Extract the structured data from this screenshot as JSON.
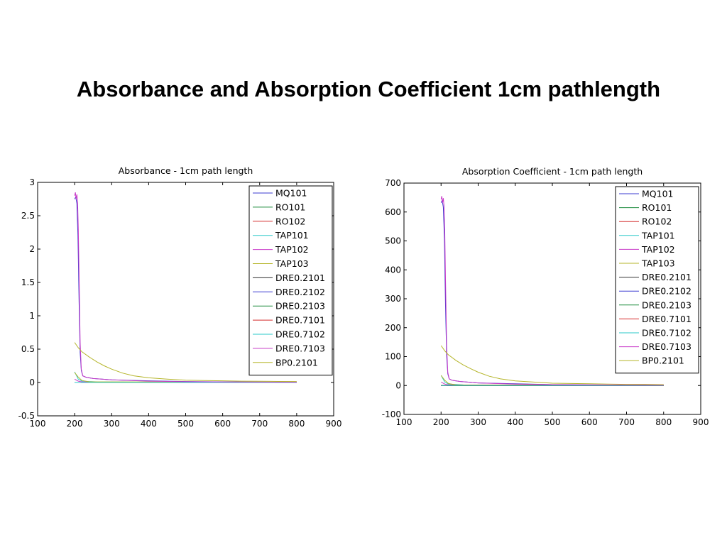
{
  "slide": {
    "title": "Absorbance and Absorption Coefficient 1cm pathlength"
  },
  "legend_colors": {
    "MQ101": "#3b3bd0",
    "RO101": "#1a8a3a",
    "RO102": "#d42a2a",
    "TAP101": "#2ac9c9",
    "TAP102": "#c83ac8",
    "TAP103": "#b5b52a",
    "DRE0.2101": "#333333",
    "DRE0.2102": "#3b3bd0",
    "DRE0.2103": "#1a8a3a",
    "DRE0.7101": "#d42a2a",
    "DRE0.7102": "#2ac9c9",
    "DRE0.7103": "#c83ac8",
    "BP0.2101": "#b5b52a"
  },
  "chart_data": [
    {
      "type": "line",
      "title": "Absorbance - 1cm path length",
      "xlabel": "",
      "ylabel": "",
      "xlim": [
        100,
        900
      ],
      "ylim": [
        -0.5,
        3
      ],
      "xticks": [
        "100",
        "200",
        "300",
        "400",
        "500",
        "600",
        "700",
        "800",
        "900"
      ],
      "yticks": [
        "-0.5",
        "0",
        "0.5",
        "1",
        "1.5",
        "2",
        "2.5",
        "3"
      ],
      "grid": false,
      "legend_position": "top-right",
      "series": [
        {
          "name": "MQ101",
          "x": [
            200,
            800
          ],
          "y": [
            0,
            0
          ]
        },
        {
          "name": "RO101",
          "x": [
            200,
            800
          ],
          "y": [
            0,
            0
          ]
        },
        {
          "name": "RO102",
          "x": [
            200,
            800
          ],
          "y": [
            0,
            0
          ]
        },
        {
          "name": "TAP101",
          "x": [
            200,
            210,
            220,
            260,
            400,
            800
          ],
          "y": [
            0.16,
            0.05,
            0.02,
            0.01,
            0.005,
            0.003
          ]
        },
        {
          "name": "TAP102",
          "x": [
            200,
            210,
            220,
            260,
            400,
            800
          ],
          "y": [
            0.05,
            0.02,
            0.01,
            0.005,
            0.003,
            0.002
          ]
        },
        {
          "name": "TAP103",
          "x": [
            200,
            210,
            220,
            240,
            800
          ],
          "y": [
            0.15,
            0.08,
            0.03,
            0.01,
            0.005
          ]
        },
        {
          "name": "DRE0.2101",
          "x": [
            200,
            800
          ],
          "y": [
            0,
            0
          ]
        },
        {
          "name": "DRE0.2102",
          "x": [
            200,
            203,
            206,
            209,
            212,
            215,
            218,
            222,
            230,
            250,
            300,
            400,
            500,
            600,
            800
          ],
          "y": [
            2.75,
            2.78,
            2.68,
            2.2,
            1.2,
            0.45,
            0.18,
            0.1,
            0.08,
            0.06,
            0.04,
            0.025,
            0.015,
            0.01,
            0.005
          ]
        },
        {
          "name": "DRE0.2103",
          "x": [
            200,
            800
          ],
          "y": [
            0,
            0
          ]
        },
        {
          "name": "DRE0.7101",
          "x": [
            200,
            800
          ],
          "y": [
            0,
            0
          ]
        },
        {
          "name": "DRE0.7102",
          "x": [
            200,
            800
          ],
          "y": [
            0,
            0
          ]
        },
        {
          "name": "DRE0.7103",
          "x": [
            200,
            202,
            204,
            206,
            208,
            210,
            212,
            215,
            218,
            222,
            230,
            250,
            300,
            400,
            500,
            600,
            800
          ],
          "y": [
            2.8,
            2.85,
            2.75,
            2.82,
            2.7,
            2.3,
            1.6,
            0.6,
            0.2,
            0.1,
            0.08,
            0.06,
            0.04,
            0.02,
            0.012,
            0.008,
            0.004
          ]
        },
        {
          "name": "BP0.2101",
          "x": [
            200,
            210,
            220,
            240,
            260,
            280,
            300,
            330,
            360,
            400,
            450,
            500,
            550,
            600,
            650,
            700,
            750,
            800
          ],
          "y": [
            0.6,
            0.52,
            0.46,
            0.38,
            0.31,
            0.25,
            0.2,
            0.14,
            0.1,
            0.07,
            0.05,
            0.035,
            0.03,
            0.025,
            0.02,
            0.018,
            0.016,
            0.015
          ]
        }
      ]
    },
    {
      "type": "line",
      "title": "Absorption Coefficient - 1cm path length",
      "xlabel": "",
      "ylabel": "",
      "xlim": [
        100,
        900
      ],
      "ylim": [
        -100,
        700
      ],
      "xticks": [
        "100",
        "200",
        "300",
        "400",
        "500",
        "600",
        "700",
        "800",
        "900"
      ],
      "yticks": [
        "-100",
        "0",
        "100",
        "200",
        "300",
        "400",
        "500",
        "600",
        "700"
      ],
      "grid": false,
      "legend_position": "top-right",
      "series": [
        {
          "name": "MQ101",
          "x": [
            200,
            800
          ],
          "y": [
            0,
            0
          ]
        },
        {
          "name": "RO101",
          "x": [
            200,
            800
          ],
          "y": [
            0,
            0
          ]
        },
        {
          "name": "RO102",
          "x": [
            200,
            800
          ],
          "y": [
            0,
            0
          ]
        },
        {
          "name": "TAP101",
          "x": [
            200,
            210,
            220,
            260,
            400,
            800
          ],
          "y": [
            35,
            12,
            5,
            2,
            1,
            0.7
          ]
        },
        {
          "name": "TAP102",
          "x": [
            200,
            210,
            220,
            260,
            400,
            800
          ],
          "y": [
            12,
            5,
            2,
            1,
            0.7,
            0.5
          ]
        },
        {
          "name": "TAP103",
          "x": [
            200,
            210,
            220,
            240,
            800
          ],
          "y": [
            35,
            18,
            7,
            2,
            1
          ]
        },
        {
          "name": "DRE0.2101",
          "x": [
            200,
            800
          ],
          "y": [
            0,
            0
          ]
        },
        {
          "name": "DRE0.2102",
          "x": [
            200,
            203,
            206,
            209,
            212,
            215,
            218,
            222,
            230,
            250,
            300,
            400,
            500,
            600,
            800
          ],
          "y": [
            632,
            640,
            617,
            506,
            276,
            104,
            41,
            23,
            18,
            14,
            9,
            6,
            3,
            2,
            1
          ]
        },
        {
          "name": "DRE0.2103",
          "x": [
            200,
            800
          ],
          "y": [
            0,
            0
          ]
        },
        {
          "name": "DRE0.7101",
          "x": [
            200,
            800
          ],
          "y": [
            0,
            0
          ]
        },
        {
          "name": "DRE0.7102",
          "x": [
            200,
            800
          ],
          "y": [
            0,
            0
          ]
        },
        {
          "name": "DRE0.7103",
          "x": [
            200,
            202,
            204,
            206,
            208,
            210,
            212,
            215,
            218,
            222,
            230,
            250,
            300,
            400,
            500,
            600,
            800
          ],
          "y": [
            644,
            655,
            632,
            648,
            621,
            529,
            368,
            138,
            46,
            23,
            18,
            14,
            9,
            5,
            3,
            2,
            1
          ]
        },
        {
          "name": "BP0.2101",
          "x": [
            200,
            210,
            220,
            240,
            260,
            280,
            300,
            330,
            360,
            400,
            450,
            500,
            550,
            600,
            650,
            700,
            750,
            800
          ],
          "y": [
            138,
            120,
            106,
            87,
            71,
            58,
            46,
            32,
            23,
            16,
            12,
            8,
            7,
            6,
            5,
            4,
            4,
            3
          ]
        }
      ]
    }
  ]
}
